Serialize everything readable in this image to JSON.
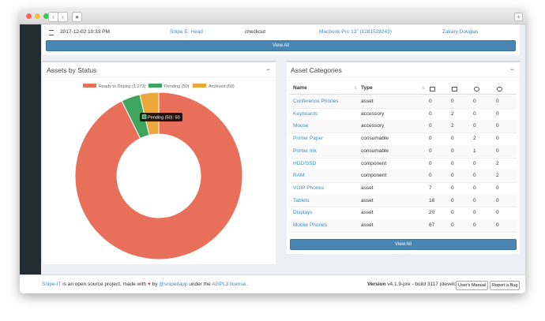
{
  "activity": {
    "row": [
      "2017-12-02 10:33 PM",
      "Snipe E. Head",
      "checkout",
      "Macbook Pro 13\" (1281528243)",
      "Zakary Douglas"
    ],
    "button": "View All"
  },
  "status_panel": {
    "title": "Assets by Status"
  },
  "chart_data": {
    "type": "donut",
    "categories": [
      "Ready to Deploy (1,273)",
      "Pending (50)",
      "Archived (50)"
    ],
    "values": [
      1273,
      50,
      50
    ],
    "colors": [
      "#e8705a",
      "#3fa55e",
      "#eda63a"
    ],
    "legend": "top",
    "tooltip": "Pending (50): 50"
  },
  "categories_panel": {
    "title": "Asset Categories",
    "columns": [
      "Name",
      "Type"
    ],
    "rows": [
      [
        "Conference Phones",
        "asset",
        0,
        0,
        0,
        0
      ],
      [
        "Keyboards",
        "accessory",
        0,
        2,
        0,
        0
      ],
      [
        "Mouse",
        "accessory",
        0,
        2,
        0,
        0
      ],
      [
        "Printer Paper",
        "consumable",
        0,
        0,
        2,
        0
      ],
      [
        "Printer Ink",
        "consumable",
        0,
        0,
        1,
        0
      ],
      [
        "HDD/SSD",
        "component",
        0,
        0,
        0,
        2
      ],
      [
        "RAM",
        "component",
        0,
        0,
        0,
        2
      ],
      [
        "VOIP Phones",
        "asset",
        7,
        0,
        0,
        0
      ],
      [
        "Tablets",
        "asset",
        16,
        0,
        0,
        0
      ],
      [
        "Displays",
        "asset",
        20,
        0,
        0,
        0
      ],
      [
        "Mobile Phones",
        "asset",
        67,
        0,
        0,
        0
      ]
    ],
    "button": "View All"
  },
  "footer": {
    "parts": [
      "Snipe-IT",
      " is an open source project, made with ",
      " by ",
      "@snipeitapp",
      " under the ",
      "AGPL3 license",
      "."
    ],
    "version_label": "Version",
    "version": " v4.1.9-pre - build 3117 (develop)",
    "buttons": [
      "User's Manual",
      "Report a Bug"
    ]
  }
}
